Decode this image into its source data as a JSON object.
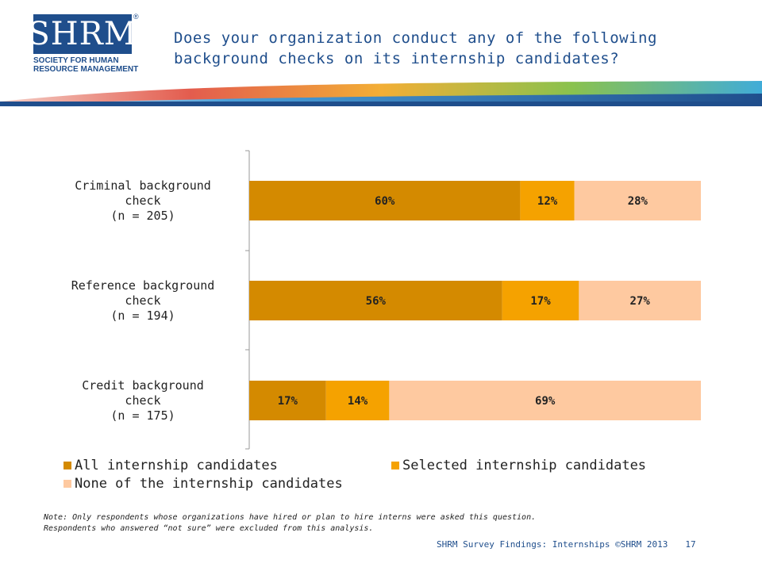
{
  "logo": {
    "text": "SHRM",
    "registered": "®",
    "subtitle_line1": "SOCIETY FOR HUMAN",
    "subtitle_line2": "RESOURCE MANAGEMENT"
  },
  "title": {
    "line1": "Does your organization conduct any of the following",
    "line2": "background checks on its internship candidates?"
  },
  "chart_data": {
    "type": "bar",
    "orientation": "horizontal",
    "stacked": true,
    "percent": true,
    "categories": [
      [
        "Criminal background",
        "check",
        "(n = 205)"
      ],
      [
        "Reference background",
        "check",
        "(n = 194)"
      ],
      [
        "Credit background",
        "check",
        "(n = 175)"
      ]
    ],
    "series": [
      {
        "name": "All internship candidates",
        "values": [
          60,
          56,
          17
        ],
        "color": "#d48a00"
      },
      {
        "name": "Selected internship candidates",
        "values": [
          12,
          17,
          14
        ],
        "color": "#f5a200"
      },
      {
        "name": "None of the internship candidates",
        "values": [
          28,
          27,
          69
        ],
        "color": "#fec9a0"
      }
    ],
    "data_label_suffix": "%",
    "xlim": [
      0,
      100
    ],
    "legend_position": "bottom",
    "grid": false
  },
  "note": {
    "line1": "Note: Only respondents whose organizations have hired or plan to hire interns were asked this question.",
    "line2": "Respondents who answered “not sure” were excluded from this analysis."
  },
  "footer": {
    "text": "SHRM Survey Findings: Internships ©SHRM 2013",
    "page": "17"
  },
  "colors": {
    "brand_blue": "#1f4e8c"
  }
}
